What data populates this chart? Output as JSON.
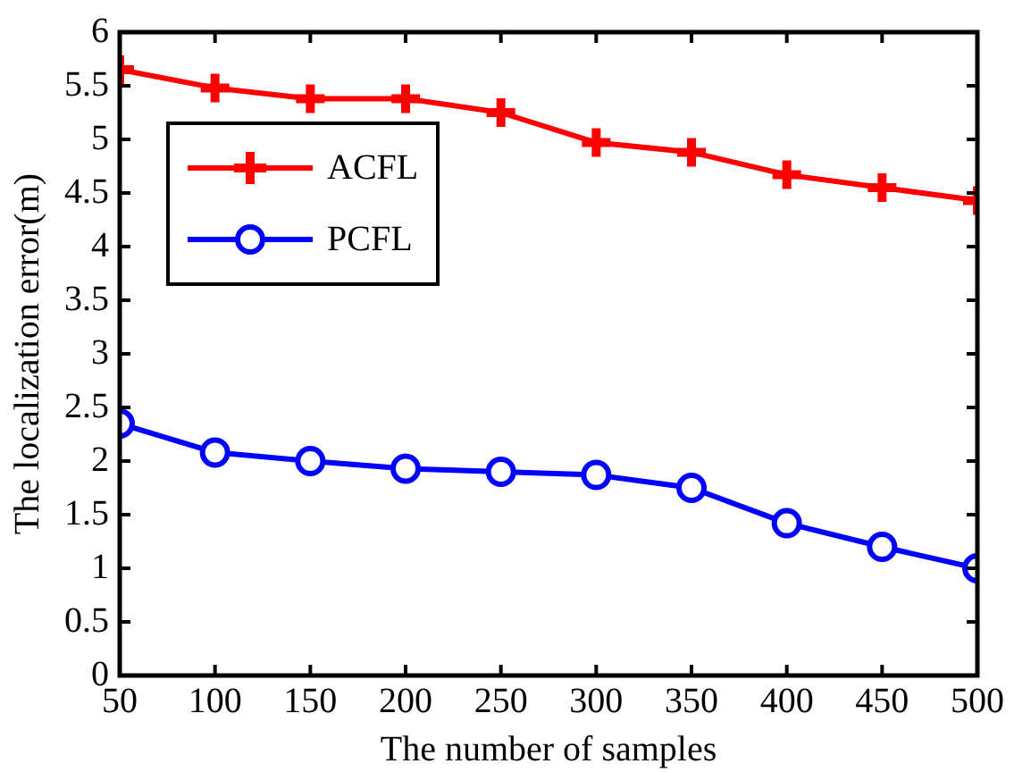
{
  "chart_data": {
    "type": "line",
    "xlabel": "The number of samples",
    "ylabel": "The localization error(m)",
    "x": [
      50,
      100,
      150,
      200,
      250,
      300,
      350,
      400,
      450,
      500
    ],
    "series": [
      {
        "name": "ACFL",
        "color": "#ff0000",
        "marker": "cross",
        "values": [
          5.65,
          5.48,
          5.38,
          5.38,
          5.25,
          4.97,
          4.88,
          4.67,
          4.55,
          4.43
        ]
      },
      {
        "name": "PCFL",
        "color": "#0000ff",
        "marker": "circle",
        "values": [
          2.35,
          2.08,
          2.0,
          1.93,
          1.9,
          1.87,
          1.75,
          1.42,
          1.2,
          1.0
        ]
      }
    ],
    "xlim": [
      50,
      500
    ],
    "xticks": [
      50,
      100,
      150,
      200,
      250,
      300,
      350,
      400,
      450,
      500
    ],
    "ylim": [
      0,
      6
    ],
    "yticks": [
      0,
      0.5,
      1,
      1.5,
      2,
      2.5,
      3,
      3.5,
      4,
      4.5,
      5,
      5.5,
      6
    ],
    "grid": false,
    "legend": "top left",
    "line_style": "solid"
  }
}
